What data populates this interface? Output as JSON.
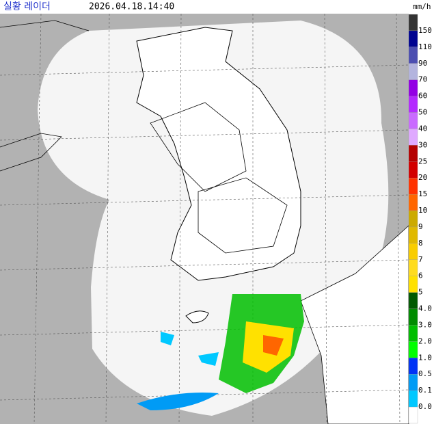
{
  "header": {
    "title": "실황 레이더",
    "timestamp": "2026.04.18.14:40",
    "unit": "mm/h"
  },
  "legend": {
    "labels": [
      "150",
      "110",
      "90",
      "70",
      "60",
      "50",
      "40",
      "30",
      "25",
      "20",
      "15",
      "10",
      "9",
      "8",
      "7",
      "6",
      "5",
      "4.0",
      "3.0",
      "2.0",
      "1.0",
      "0.5",
      "0.1",
      "0.0"
    ],
    "colors": [
      "#333333",
      "#000390",
      "#4c4eb1",
      "#b3b4de",
      "#9300e4",
      "#b329ff",
      "#c96bff",
      "#dfa9ff",
      "#b40000",
      "#d20000",
      "#ff3200",
      "#ff6600",
      "#ccaa00",
      "#e0b900",
      "#f9cd00",
      "#ffdc1f",
      "#ffe100",
      "#005a00",
      "#008c00",
      "#00be00",
      "#00ff00",
      "#0033f5",
      "#009bf5",
      "#00c8ff",
      "#ffffff"
    ]
  }
}
